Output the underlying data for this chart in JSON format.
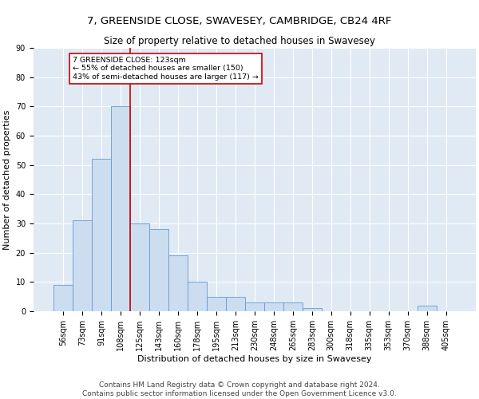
{
  "title": "7, GREENSIDE CLOSE, SWAVESEY, CAMBRIDGE, CB24 4RF",
  "subtitle": "Size of property relative to detached houses in Swavesey",
  "xlabel": "Distribution of detached houses by size in Swavesey",
  "ylabel": "Number of detached properties",
  "bar_color": "#ccddf0",
  "bar_edge_color": "#6699cc",
  "background_color": "#e0eaf5",
  "grid_color": "#ffffff",
  "vline_color": "#cc0000",
  "annotation_text": "7 GREENSIDE CLOSE: 123sqm\n← 55% of detached houses are smaller (150)\n43% of semi-detached houses are larger (117) →",
  "annotation_box_color": "#ffffff",
  "annotation_box_edge": "#cc0000",
  "bins": [
    "56sqm",
    "73sqm",
    "91sqm",
    "108sqm",
    "125sqm",
    "143sqm",
    "160sqm",
    "178sqm",
    "195sqm",
    "213sqm",
    "230sqm",
    "248sqm",
    "265sqm",
    "283sqm",
    "300sqm",
    "318sqm",
    "335sqm",
    "353sqm",
    "370sqm",
    "388sqm",
    "405sqm"
  ],
  "values": [
    9,
    31,
    52,
    70,
    30,
    28,
    19,
    10,
    5,
    5,
    3,
    3,
    3,
    1,
    0,
    0,
    0,
    0,
    0,
    2,
    0
  ],
  "ylim": [
    0,
    90
  ],
  "yticks": [
    0,
    10,
    20,
    30,
    40,
    50,
    60,
    70,
    80,
    90
  ],
  "footnote": "Contains HM Land Registry data © Crown copyright and database right 2024.\nContains public sector information licensed under the Open Government Licence v3.0.",
  "title_fontsize": 9.5,
  "subtitle_fontsize": 8.5,
  "label_fontsize": 8,
  "tick_fontsize": 7,
  "footnote_fontsize": 6.5
}
